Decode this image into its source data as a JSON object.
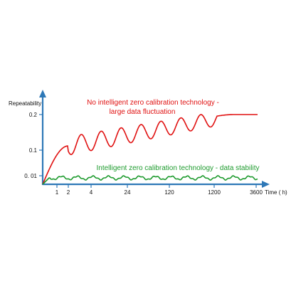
{
  "chart_data": {
    "type": "line",
    "ylabel": "Repeatability",
    "xlabel": "Time ( h)",
    "x_ticks": [
      "1",
      "2",
      "4",
      "24",
      "120",
      "1200",
      "3600"
    ],
    "y_ticks": [
      "0. 01",
      "0.1",
      "0.2"
    ],
    "x_scale": "categorical (log-like)",
    "y_range": [
      0,
      0.2
    ],
    "grid": false,
    "series": [
      {
        "color": "#e01010",
        "x": [
          "1",
          "2",
          "4",
          "24",
          "120",
          "1200",
          "3600"
        ],
        "values": [
          0.07,
          0.1,
          0.09,
          0.15,
          0.18,
          0.19,
          0.2
        ]
      },
      {
        "color": "#1e9b2e",
        "x": [
          "1",
          "2",
          "4",
          "24",
          "120",
          "1200",
          "3600"
        ],
        "values": [
          0.01,
          0.01,
          0.01,
          0.01,
          0.01,
          0.01,
          0.01
        ]
      }
    ],
    "annotations": [
      {
        "lines": [
          "No intelligent zero calibration technology -",
          "large data fluctuation"
        ],
        "color": "#e01010"
      },
      {
        "lines": [
          "Intelligent zero calibration technology - data stability"
        ],
        "color": "#1e9b2e"
      }
    ]
  },
  "colors": {
    "axis": "#2e78b7",
    "text": "#111111"
  }
}
